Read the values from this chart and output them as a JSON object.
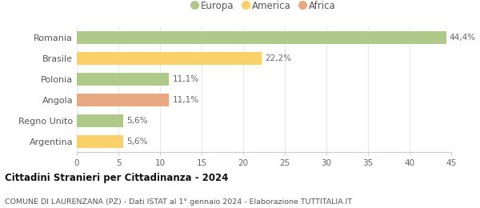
{
  "categories": [
    "Romania",
    "Brasile",
    "Polonia",
    "Angola",
    "Regno Unito",
    "Argentina"
  ],
  "values": [
    44.4,
    22.2,
    11.1,
    11.1,
    5.6,
    5.6
  ],
  "labels": [
    "44,4%",
    "22,2%",
    "11,1%",
    "11,1%",
    "5,6%",
    "5,6%"
  ],
  "colors": [
    "#aec98a",
    "#f9d06a",
    "#aec98a",
    "#e8a882",
    "#aec98a",
    "#f9d06a"
  ],
  "legend_labels": [
    "Europa",
    "America",
    "Africa"
  ],
  "legend_colors": [
    "#aec98a",
    "#f9d06a",
    "#e8a882"
  ],
  "title": "Cittadini Stranieri per Cittadinanza - 2024",
  "subtitle": "COMUNE DI LAURENZANA (PZ) - Dati ISTAT al 1° gennaio 2024 - Elaborazione TUTTITALIA.IT",
  "xlim": [
    0,
    45
  ],
  "xticks": [
    0,
    5,
    10,
    15,
    20,
    25,
    30,
    35,
    40,
    45
  ],
  "bar_height": 0.6,
  "grid_color": "#e8e8e8"
}
